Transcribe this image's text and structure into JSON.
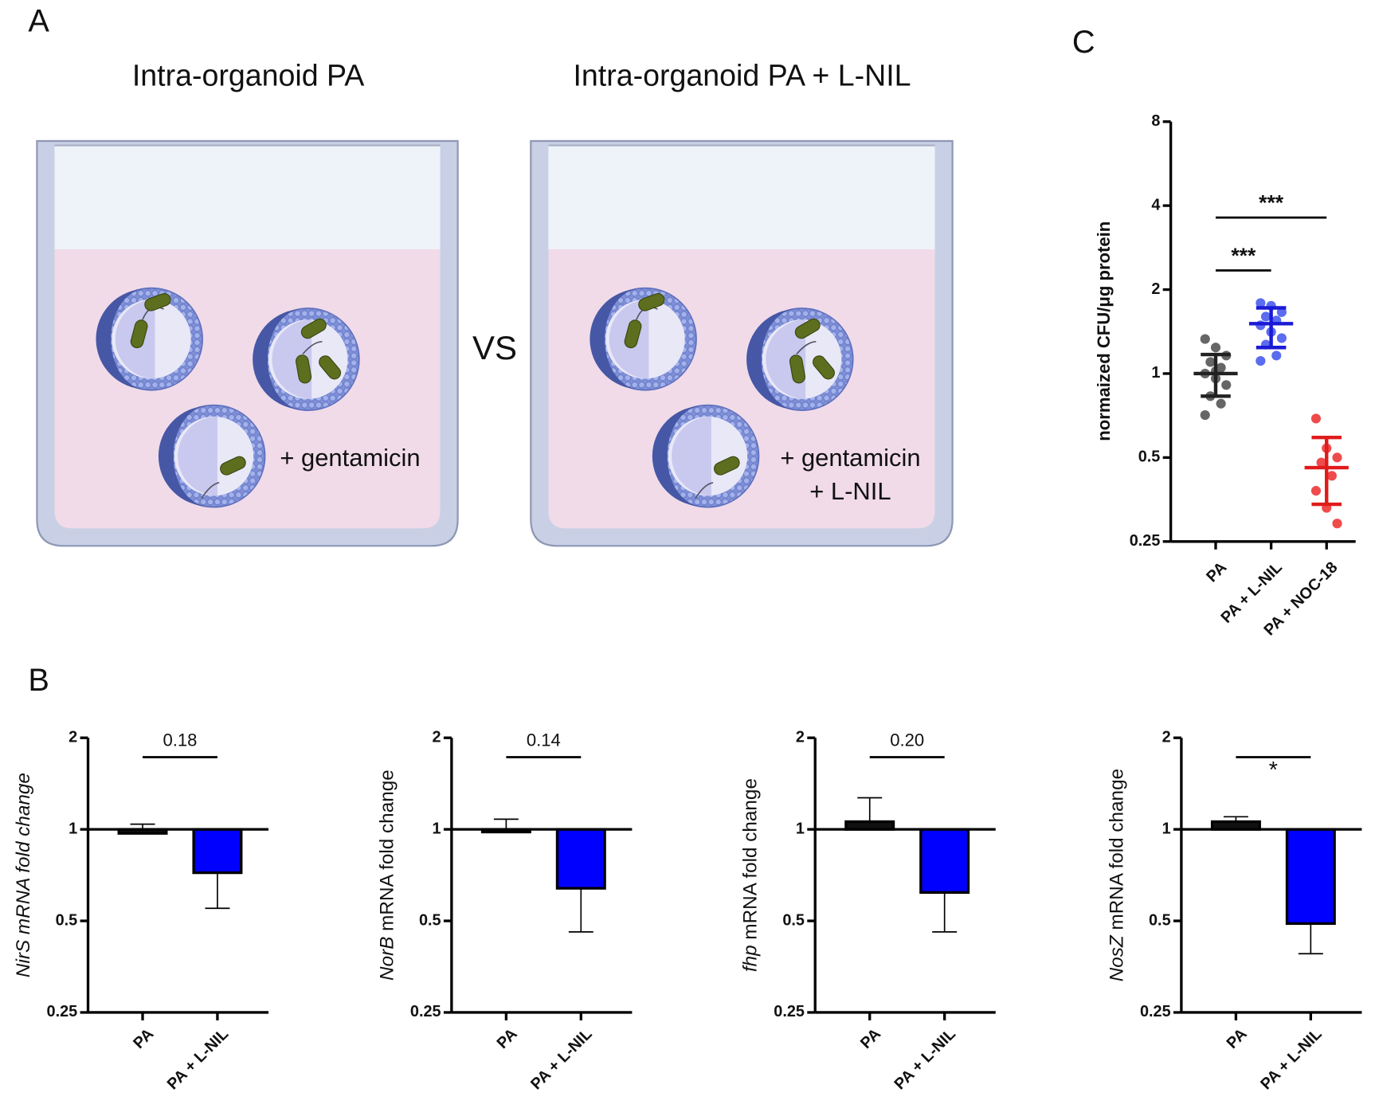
{
  "panel_labels": [
    "A",
    "B",
    "C"
  ],
  "diagram": {
    "left_title": "Intra-organoid PA",
    "right_title": "Intra-organoid PA + L-NIL",
    "vs": "VS",
    "left_treatment": [
      "+ gentamicin"
    ],
    "right_treatment": [
      "+ gentamicin",
      "+ L-NIL"
    ]
  },
  "chart_data": [
    {
      "type": "dot",
      "ylabel": [
        {
          "text": "normaized CFU/μg protein",
          "italic": false
        }
      ],
      "categories": [
        "PA",
        "PA + L-NIL",
        "PA + NOC-18"
      ],
      "points": [
        [
          1.33,
          1.24,
          1.16,
          1.1,
          1.05,
          1.0,
          0.96,
          0.91,
          0.83,
          0.78,
          0.71,
          1.02
        ],
        [
          1.79,
          1.75,
          1.66,
          1.6,
          1.55,
          1.49,
          1.41,
          1.34,
          1.27,
          1.16,
          1.11
        ],
        [
          0.69,
          0.54,
          0.5,
          0.48,
          0.43,
          0.38,
          0.33,
          0.29
        ]
      ],
      "means": [
        1.0,
        1.51,
        0.46
      ],
      "error_bars": [
        [
          0.83,
          1.17
        ],
        [
          1.24,
          1.72
        ],
        [
          0.34,
          0.59
        ]
      ],
      "colors": [
        "#222222",
        "#1a1ad6",
        "#e01b1b"
      ],
      "point_colors": [
        "#666666",
        "#5b6cf0",
        "#f04b4b"
      ],
      "yscale": "log2",
      "ylim": [
        0.25,
        8
      ],
      "yticks": [
        0.25,
        0.5,
        1,
        2,
        4,
        8
      ],
      "annotations": [
        {
          "text": "***",
          "pair": [
            "PA",
            "PA + L-NIL"
          ]
        },
        {
          "text": "***",
          "pair": [
            "PA",
            "PA + NOC-18"
          ]
        }
      ]
    },
    {
      "type": "bar",
      "ylabel": [
        {
          "text": "NirS mRNA fold change",
          "italic": true
        }
      ],
      "categories": [
        "PA",
        "PA + L-NIL"
      ],
      "values": [
        0.97,
        0.72
      ],
      "error_bars": [
        1.04,
        0.55
      ],
      "colors": [
        "#111111",
        "#0000ff"
      ],
      "baseline": 1,
      "yscale": "log2",
      "ylim": [
        0.25,
        2
      ],
      "yticks": [
        0.25,
        0.5,
        1,
        2
      ],
      "annotation": "0.18"
    },
    {
      "type": "bar",
      "ylabel": [
        {
          "text": "NorB",
          "italic": true
        },
        {
          "text": " mRNA fold change",
          "italic": false
        }
      ],
      "categories": [
        "PA",
        "PA + L-NIL"
      ],
      "values": [
        0.98,
        0.64
      ],
      "error_bars": [
        1.08,
        0.46
      ],
      "colors": [
        "#111111",
        "#0000ff"
      ],
      "baseline": 1,
      "yscale": "log2",
      "ylim": [
        0.25,
        2
      ],
      "yticks": [
        0.25,
        0.5,
        1,
        2
      ],
      "annotation": "0.14"
    },
    {
      "type": "bar",
      "ylabel": [
        {
          "text": "fhp",
          "italic": true
        },
        {
          "text": " mRNA fold change",
          "italic": false
        }
      ],
      "categories": [
        "PA",
        "PA + L-NIL"
      ],
      "values": [
        1.06,
        0.62
      ],
      "error_bars": [
        1.27,
        0.46
      ],
      "colors": [
        "#111111",
        "#0000ff"
      ],
      "baseline": 1,
      "yscale": "log2",
      "ylim": [
        0.25,
        2
      ],
      "yticks": [
        0.25,
        0.5,
        1,
        2
      ],
      "annotation": "0.20"
    },
    {
      "type": "bar",
      "ylabel": [
        {
          "text": "NosZ",
          "italic": true
        },
        {
          "text": " mRNA fold change",
          "italic": false
        }
      ],
      "categories": [
        "PA",
        "PA + L-NIL"
      ],
      "values": [
        1.06,
        0.49
      ],
      "error_bars": [
        1.1,
        0.39
      ],
      "colors": [
        "#111111",
        "#0000ff"
      ],
      "baseline": 1,
      "yscale": "log2",
      "ylim": [
        0.25,
        2
      ],
      "yticks": [
        0.25,
        0.5,
        1,
        2
      ],
      "annotation": "*"
    }
  ]
}
